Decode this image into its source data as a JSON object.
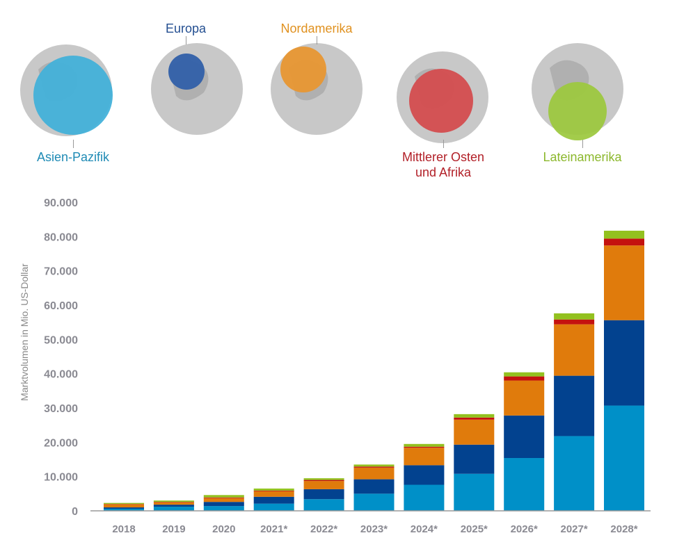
{
  "regions": [
    {
      "name": "Asien-Pazifik",
      "color": "#41b0d9",
      "label_color": "#1f8bb5"
    },
    {
      "name": "Europa",
      "color": "#2e5ea8",
      "label_color": "#244f91"
    },
    {
      "name": "Nordamerika",
      "color": "#e8962f",
      "label_color": "#e0911f"
    },
    {
      "name": "Mittlerer Osten und Afrika",
      "line1": "Mittlerer Osten",
      "line2": "und Afrika",
      "color": "#d44a4c",
      "label_color": "#b22028"
    },
    {
      "name": "Lateinamerika",
      "color": "#9cc83d",
      "label_color": "#8cb82d"
    }
  ],
  "chart_data": {
    "type": "bar",
    "stacked": true,
    "ylabel": "Marktvolumen in Mio. US-Dollar",
    "ylim": [
      0,
      90000
    ],
    "yticks": [
      "0",
      "10.000",
      "20.000",
      "30.000",
      "40.000",
      "50.000",
      "60.000",
      "70.000",
      "80.000",
      "90.000"
    ],
    "categories": [
      "2018",
      "2019",
      "2020",
      "2021*",
      "2022*",
      "2023*",
      "2024*",
      "2025*",
      "2026*",
      "2027*",
      "2028*"
    ],
    "series": [
      {
        "name": "Asien-Pazifik",
        "color": "#0090c8",
        "values": [
          600,
          1200,
          1400,
          2100,
          3400,
          5000,
          7600,
          10800,
          15400,
          21800,
          30700
        ]
      },
      {
        "name": "Europa",
        "color": "#02428f",
        "values": [
          400,
          600,
          1200,
          2000,
          2900,
          4200,
          5700,
          8500,
          12400,
          17600,
          24900
        ]
      },
      {
        "name": "Nordamerika",
        "color": "#e07b0c",
        "values": [
          900,
          650,
          1100,
          1600,
          2400,
          3400,
          5100,
          7300,
          10200,
          15000,
          21800
        ]
      },
      {
        "name": "Mittlerer Osten und Afrika",
        "color": "#c4120f",
        "values": [
          100,
          150,
          200,
          200,
          300,
          300,
          300,
          600,
          1200,
          1400,
          2000
        ]
      },
      {
        "name": "Lateinamerika",
        "color": "#93c11f",
        "values": [
          300,
          400,
          700,
          600,
          500,
          600,
          800,
          1000,
          1200,
          1800,
          2300
        ]
      }
    ]
  }
}
